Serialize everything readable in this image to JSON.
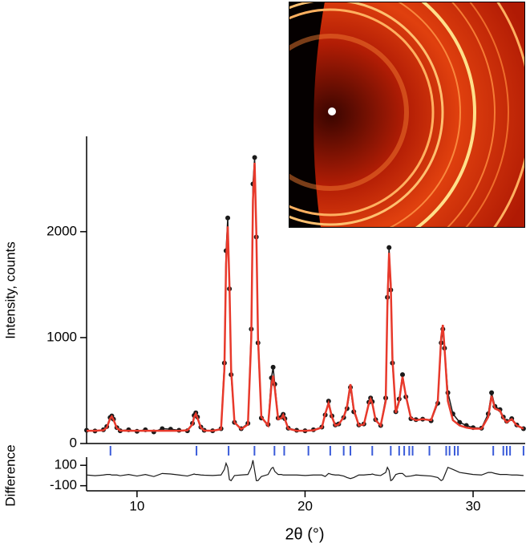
{
  "chart_data": [
    {
      "type": "line",
      "ylabel": "Intensity, counts",
      "x": [
        7.0,
        7.5,
        8.0,
        8.2,
        8.4,
        8.5,
        8.6,
        8.8,
        9.0,
        9.5,
        10,
        10.5,
        11,
        11.5,
        12,
        12.5,
        13,
        13.3,
        13.4,
        13.5,
        13.6,
        13.8,
        14,
        14.5,
        15.0,
        15.2,
        15.3,
        15.4,
        15.5,
        15.6,
        15.8,
        16.2,
        16.6,
        16.8,
        16.9,
        17.0,
        17.1,
        17.2,
        17.4,
        17.8,
        18.0,
        18.1,
        18.2,
        18.4,
        18.6,
        18.7,
        18.8,
        19.0,
        19.5,
        20.0,
        20.5,
        21.0,
        21.2,
        21.4,
        21.6,
        21.8,
        22.0,
        22.3,
        22.5,
        22.7,
        22.9,
        23.2,
        23.5,
        23.8,
        23.9,
        24.0,
        24.2,
        24.5,
        24.8,
        24.9,
        25.0,
        25.1,
        25.2,
        25.4,
        25.6,
        25.8,
        26.0,
        26.3,
        26.6,
        27.0,
        27.5,
        27.9,
        28.1,
        28.2,
        28.3,
        28.5,
        28.8,
        29.2,
        29.6,
        30.0,
        30.5,
        30.9,
        31.1,
        31.3,
        31.6,
        31.8,
        32.0,
        32.3,
        32.6,
        33.0
      ],
      "series": [
        {
          "color": "#1a1a1a",
          "marker": true,
          "values": [
            125,
            118,
            130,
            160,
            245,
            260,
            230,
            150,
            120,
            130,
            115,
            130,
            110,
            140,
            135,
            125,
            120,
            190,
            265,
            290,
            250,
            155,
            125,
            120,
            140,
            760,
            1820,
            2130,
            1460,
            650,
            200,
            140,
            190,
            1080,
            2450,
            2700,
            1950,
            950,
            240,
            180,
            620,
            720,
            560,
            240,
            250,
            275,
            235,
            145,
            125,
            120,
            130,
            155,
            270,
            400,
            260,
            175,
            185,
            245,
            330,
            530,
            300,
            175,
            185,
            390,
            430,
            395,
            225,
            170,
            430,
            1380,
            1850,
            1450,
            760,
            300,
            420,
            650,
            440,
            235,
            225,
            230,
            215,
            380,
            950,
            1080,
            900,
            480,
            280,
            200,
            170,
            150,
            145,
            280,
            480,
            350,
            320,
            250,
            210,
            235,
            175,
            140
          ]
        },
        {
          "color": "#e8392b",
          "marker": false,
          "values": [
            120,
            120,
            125,
            150,
            235,
            255,
            225,
            145,
            122,
            120,
            120,
            120,
            120,
            120,
            120,
            120,
            125,
            180,
            250,
            280,
            240,
            150,
            122,
            120,
            135,
            700,
            1700,
            2050,
            1500,
            700,
            200,
            135,
            180,
            1000,
            2300,
            2650,
            2000,
            1000,
            250,
            170,
            550,
            640,
            520,
            230,
            240,
            270,
            230,
            140,
            120,
            120,
            125,
            150,
            280,
            380,
            250,
            170,
            180,
            250,
            350,
            560,
            320,
            170,
            180,
            380,
            420,
            380,
            220,
            170,
            400,
            1300,
            1800,
            1500,
            800,
            290,
            400,
            630,
            450,
            240,
            220,
            230,
            220,
            400,
            1000,
            1120,
            900,
            400,
            220,
            170,
            150,
            140,
            140,
            250,
            450,
            330,
            310,
            240,
            200,
            230,
            170,
            140
          ]
        }
      ],
      "reflections": [
        8.42,
        13.54,
        15.45,
        16.99,
        18.18,
        18.76,
        20.2,
        21.5,
        22.3,
        22.7,
        24.0,
        25.1,
        25.6,
        25.9,
        26.2,
        26.4,
        27.4,
        28.4,
        28.6,
        28.9,
        29.1,
        31.2,
        31.8,
        32.0,
        32.2,
        33.0
      ],
      "reflection_color": "#3a5bd9",
      "xlim": [
        7,
        33.1
      ],
      "ylim": [
        0,
        2900
      ],
      "yticks": [
        0,
        1000,
        2000
      ]
    },
    {
      "type": "line",
      "ylabel": "Difference",
      "xlabel": "2θ (°)",
      "x": [
        7.0,
        7.5,
        8.0,
        8.2,
        8.4,
        8.5,
        8.6,
        8.8,
        9.0,
        9.5,
        10,
        10.5,
        11,
        11.5,
        12,
        12.5,
        13,
        13.3,
        13.4,
        13.5,
        13.6,
        13.8,
        14,
        14.5,
        15.0,
        15.2,
        15.3,
        15.4,
        15.5,
        15.6,
        15.8,
        16.2,
        16.6,
        16.8,
        16.9,
        17.0,
        17.1,
        17.2,
        17.4,
        17.8,
        18.0,
        18.1,
        18.2,
        18.4,
        18.6,
        18.7,
        18.8,
        19.0,
        19.5,
        20.0,
        20.5,
        21.0,
        21.2,
        21.4,
        21.6,
        21.8,
        22.0,
        22.3,
        22.5,
        22.7,
        22.9,
        23.2,
        23.5,
        23.8,
        23.9,
        24.0,
        24.2,
        24.5,
        24.8,
        24.9,
        25.0,
        25.1,
        25.2,
        25.4,
        25.6,
        25.8,
        26.0,
        26.3,
        26.6,
        27.0,
        27.5,
        27.9,
        28.1,
        28.2,
        28.3,
        28.5,
        28.8,
        29.2,
        29.6,
        30.0,
        30.5,
        30.9,
        31.1,
        31.3,
        31.6,
        31.8,
        32.0,
        32.3,
        32.6,
        33.0
      ],
      "series": [
        {
          "color": "#1a1a1a",
          "marker": false,
          "values": [
            5,
            -2,
            5,
            10,
            10,
            5,
            5,
            5,
            -2,
            10,
            -5,
            10,
            -10,
            20,
            15,
            5,
            -5,
            10,
            15,
            10,
            10,
            5,
            3,
            0,
            5,
            60,
            120,
            80,
            -40,
            -50,
            0,
            5,
            10,
            80,
            150,
            50,
            -50,
            -50,
            -10,
            10,
            70,
            80,
            40,
            10,
            10,
            5,
            5,
            5,
            5,
            0,
            5,
            5,
            -10,
            20,
            10,
            5,
            5,
            -5,
            -20,
            -30,
            -20,
            5,
            5,
            10,
            10,
            15,
            5,
            0,
            30,
            80,
            50,
            -50,
            -40,
            10,
            20,
            20,
            -10,
            -5,
            5,
            0,
            -5,
            -20,
            -50,
            -40,
            0,
            80,
            60,
            30,
            20,
            10,
            5,
            30,
            30,
            20,
            10,
            10,
            10,
            5,
            5,
            0
          ]
        }
      ],
      "xlim": [
        7,
        33.1
      ],
      "ylim": [
        -150,
        180
      ],
      "yticks": [
        -100,
        100
      ],
      "xticks": [
        10,
        20,
        30
      ]
    }
  ]
}
